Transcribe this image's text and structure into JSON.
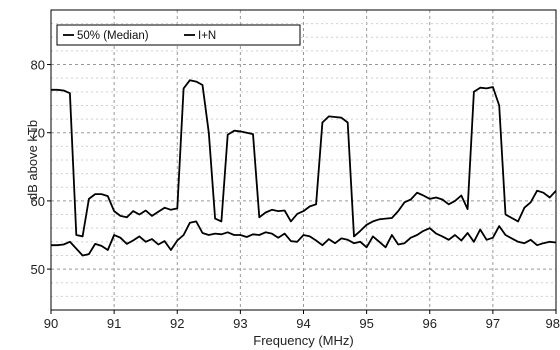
{
  "chart_data": {
    "type": "line",
    "xlabel": "Frequency (MHz)",
    "ylabel": "dB above kTb",
    "xlim": [
      90,
      98
    ],
    "ylim": [
      44,
      88
    ],
    "xticks": [
      90,
      91,
      92,
      93,
      94,
      95,
      96,
      97,
      98
    ],
    "yticks": [
      50,
      60,
      70,
      80
    ],
    "grid": true,
    "legend_position": "top-left",
    "series": [
      {
        "name": "50% (Median)",
        "color": "#000000",
        "x": [
          90.0,
          90.1,
          90.2,
          90.3,
          90.4,
          90.5,
          90.6,
          90.7,
          90.8,
          90.9,
          91.0,
          91.1,
          91.2,
          91.3,
          91.4,
          91.5,
          91.6,
          91.7,
          91.8,
          91.9,
          92.0,
          92.1,
          92.2,
          92.3,
          92.4,
          92.5,
          92.6,
          92.7,
          92.8,
          92.9,
          93.0,
          93.1,
          93.2,
          93.3,
          93.4,
          93.5,
          93.6,
          93.7,
          93.8,
          93.9,
          94.0,
          94.1,
          94.2,
          94.3,
          94.4,
          94.5,
          94.6,
          94.7,
          94.8,
          94.9,
          95.0,
          95.1,
          95.2,
          95.3,
          95.4,
          95.5,
          95.6,
          95.7,
          95.8,
          95.9,
          96.0,
          96.1,
          96.2,
          96.3,
          96.4,
          96.5,
          96.6,
          96.7,
          96.8,
          96.9,
          97.0,
          97.1,
          97.2,
          97.3,
          97.4,
          97.5,
          97.6,
          97.7,
          97.8,
          97.9,
          98.0
        ],
        "y": [
          53.5,
          53.5,
          53.6,
          54.0,
          53.0,
          52.0,
          52.2,
          53.7,
          53.4,
          52.8,
          55.0,
          54.6,
          53.7,
          54.2,
          54.8,
          54.0,
          54.4,
          53.6,
          54.1,
          52.8,
          54.2,
          55.0,
          56.8,
          57.0,
          55.3,
          55.0,
          55.2,
          55.1,
          55.4,
          55.0,
          55.0,
          54.7,
          55.1,
          55.0,
          55.4,
          55.2,
          54.6,
          55.2,
          54.1,
          54.0,
          55.0,
          54.8,
          54.2,
          53.5,
          54.4,
          53.8,
          54.5,
          54.3,
          53.8,
          54.0,
          53.2,
          54.8,
          54.0,
          53.2,
          55.0,
          53.6,
          53.8,
          54.6,
          55.0,
          55.6,
          56.0,
          55.2,
          54.8,
          54.3,
          55.0,
          54.2,
          55.3,
          54.0,
          55.8,
          54.3,
          54.6,
          56.3,
          55.0,
          54.5,
          54.0,
          53.8,
          54.3,
          53.5,
          53.8,
          54.0,
          53.9
        ]
      },
      {
        "name": "I+N",
        "color": "#000000",
        "x": [
          90.0,
          90.1,
          90.2,
          90.3,
          90.4,
          90.5,
          90.6,
          90.7,
          90.8,
          90.9,
          91.0,
          91.1,
          91.2,
          91.3,
          91.4,
          91.5,
          91.6,
          91.7,
          91.8,
          91.9,
          92.0,
          92.1,
          92.2,
          92.3,
          92.4,
          92.5,
          92.6,
          92.7,
          92.8,
          92.9,
          93.0,
          93.1,
          93.2,
          93.3,
          93.4,
          93.5,
          93.6,
          93.7,
          93.8,
          93.9,
          94.0,
          94.1,
          94.2,
          94.3,
          94.4,
          94.5,
          94.6,
          94.7,
          94.8,
          94.9,
          95.0,
          95.1,
          95.2,
          95.3,
          95.4,
          95.5,
          95.6,
          95.7,
          95.8,
          95.9,
          96.0,
          96.1,
          96.2,
          96.3,
          96.4,
          96.5,
          96.6,
          96.7,
          96.8,
          96.9,
          97.0,
          97.1,
          97.2,
          97.3,
          97.4,
          97.5,
          97.6,
          97.7,
          97.8,
          97.9,
          98.0
        ],
        "y": [
          76.3,
          76.3,
          76.2,
          75.8,
          55.0,
          54.8,
          60.3,
          61.0,
          61.0,
          60.7,
          58.5,
          57.8,
          57.6,
          58.5,
          58.0,
          58.6,
          57.8,
          58.4,
          59.0,
          58.7,
          58.9,
          76.5,
          77.7,
          77.5,
          77.0,
          70.0,
          57.4,
          57.0,
          69.7,
          70.3,
          70.2,
          70.0,
          69.8,
          57.6,
          58.3,
          58.7,
          58.5,
          58.6,
          57.0,
          58.1,
          58.5,
          59.2,
          59.5,
          71.5,
          72.4,
          72.3,
          72.2,
          71.5,
          54.8,
          55.6,
          56.5,
          57.0,
          57.3,
          57.4,
          57.5,
          58.5,
          59.8,
          60.2,
          61.2,
          60.8,
          60.3,
          60.5,
          60.2,
          59.5,
          60.0,
          60.8,
          58.8,
          76.0,
          76.6,
          76.5,
          76.7,
          74.0,
          58.0,
          57.5,
          57.0,
          59.0,
          59.8,
          61.5,
          61.2,
          60.5,
          61.5
        ]
      }
    ]
  }
}
